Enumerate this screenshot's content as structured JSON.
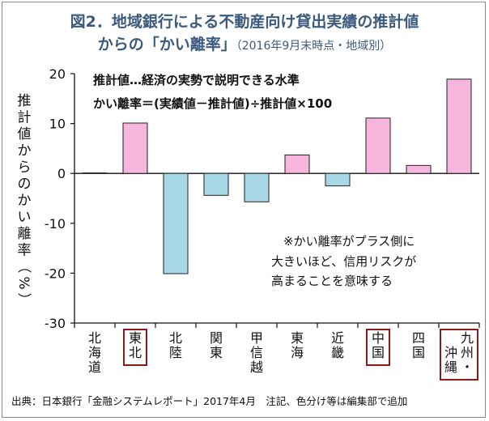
{
  "title": {
    "line1": "図2．地域銀行による不動産向け貸出実績の推計値",
    "line2_main": "からの「かい離率」",
    "line2_sub": "（2016年9月末時点・地域別）"
  },
  "definitions": {
    "line1": "推計値…経済の実勢で説明できる水準",
    "line2": "かい離率＝(実績値－推計値)÷推計値×100"
  },
  "note": {
    "line1": "※かい離率がプラス側に",
    "line2": "大きいほど、信用リスクが",
    "line3": "高まることを意味する"
  },
  "source": "出典：日本銀行「金融システムレポート」2017年4月　注記、色分け等は編集部で追加",
  "colors": {
    "positive": "#f7b4dc",
    "negative": "#a8d8e6",
    "highlight_box": "#8b1a1a",
    "title": "#3b5a7e"
  },
  "chart_data": {
    "type": "bar",
    "ylabel": "推計値からのかい離率（%）",
    "ylim": [
      -30,
      20
    ],
    "yticks": [
      20,
      10,
      0,
      -10,
      -20,
      -30
    ],
    "grid": false,
    "categories": [
      "北海道",
      "東北",
      "北陸",
      "関東",
      "甲信越",
      "東海",
      "近畿",
      "中国",
      "四国",
      "九州・沖縄"
    ],
    "values": [
      0.1,
      10.1,
      -20.1,
      -4.4,
      -5.7,
      3.7,
      -2.5,
      11.1,
      1.6,
      18.9
    ],
    "highlighted": [
      "東北",
      "中国",
      "九州・沖縄"
    ]
  }
}
